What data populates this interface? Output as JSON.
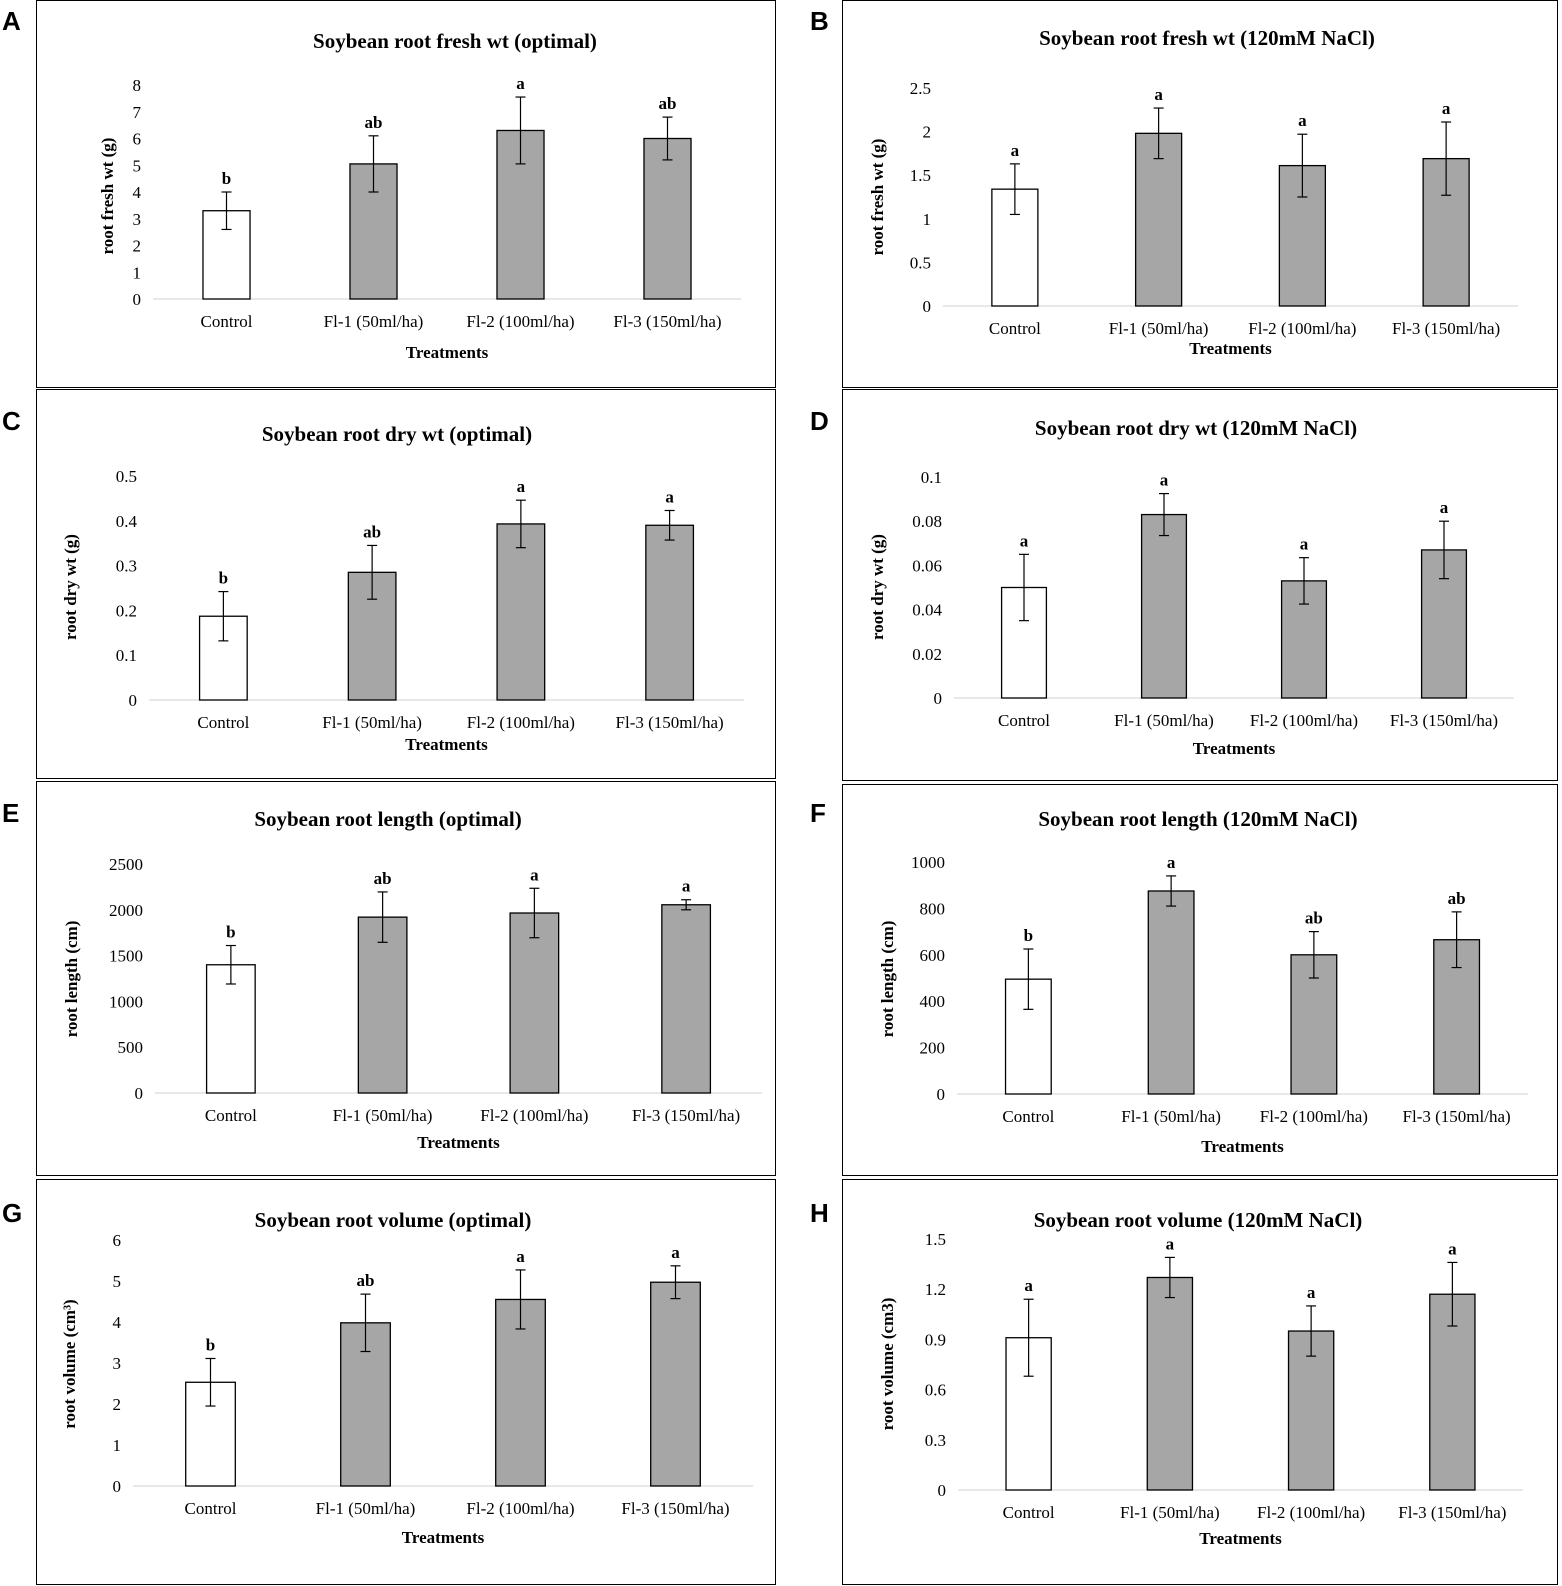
{
  "chart_data": [
    {
      "id": "A",
      "type": "bar",
      "title": "Soybean root fresh wt (optimal)",
      "xlabel": "Treatments",
      "ylabel": "root fresh wt (g)",
      "ylim": [
        0,
        8
      ],
      "yticks": [
        "0",
        "1",
        "2",
        "3",
        "4",
        "5",
        "6",
        "7",
        "8"
      ],
      "categories": [
        "Control",
        "Fl-1 (50ml/ha)",
        "Fl-2 (100ml/ha)",
        "Fl-3 (150ml/ha)"
      ],
      "values": [
        3.3,
        5.05,
        6.3,
        6.0
      ],
      "errors": [
        0.7,
        1.05,
        1.25,
        0.8
      ],
      "significance": [
        "b",
        "ab",
        "a",
        "ab"
      ],
      "bar_colors": [
        "#ffffff",
        "#a6a6a6",
        "#a6a6a6",
        "#a6a6a6"
      ]
    },
    {
      "id": "B",
      "type": "bar",
      "title": "Soybean root fresh wt (120mM NaCl)",
      "xlabel": "Treatments",
      "ylabel": "root fresh wt (g)",
      "ylim": [
        0,
        2.5
      ],
      "yticks": [
        "0",
        "0.5",
        "1",
        "1.5",
        "2",
        "2.5"
      ],
      "categories": [
        "Control",
        "Fl-1 (50ml/ha)",
        "Fl-2 (100ml/ha)",
        "Fl-3 (150ml/ha)"
      ],
      "values": [
        1.34,
        1.98,
        1.61,
        1.69
      ],
      "errors": [
        0.29,
        0.29,
        0.36,
        0.42
      ],
      "significance": [
        "a",
        "a",
        "a",
        "a"
      ],
      "bar_colors": [
        "#ffffff",
        "#a6a6a6",
        "#a6a6a6",
        "#a6a6a6"
      ]
    },
    {
      "id": "C",
      "type": "bar",
      "title": "Soybean root dry wt (optimal)",
      "xlabel": "Treatments",
      "ylabel": "root dry wt (g)",
      "ylim": [
        0,
        0.5
      ],
      "yticks": [
        "0",
        "0.1",
        "0.2",
        "0.3",
        "0.4",
        "0.5"
      ],
      "categories": [
        "Control",
        "Fl-1 (50ml/ha)",
        "Fl-2 (100ml/ha)",
        "Fl-3 (150ml/ha)"
      ],
      "values": [
        0.187,
        0.285,
        0.393,
        0.39
      ],
      "errors": [
        0.055,
        0.06,
        0.053,
        0.033
      ],
      "significance": [
        "b",
        "ab",
        "a",
        "a"
      ],
      "bar_colors": [
        "#ffffff",
        "#a6a6a6",
        "#a6a6a6",
        "#a6a6a6"
      ]
    },
    {
      "id": "D",
      "type": "bar",
      "title": "Soybean root dry wt (120mM NaCl)",
      "xlabel": "Treatments",
      "ylabel": "root dry  wt (g)",
      "ylim": [
        0,
        0.1
      ],
      "yticks": [
        "0",
        "0.02",
        "0.04",
        "0.06",
        "0.08",
        "0.1"
      ],
      "categories": [
        "Control",
        "Fl-1 (50ml/ha)",
        "Fl-2 (100ml/ha)",
        "Fl-3 (150ml/ha)"
      ],
      "values": [
        0.05,
        0.083,
        0.053,
        0.067
      ],
      "errors": [
        0.015,
        0.0095,
        0.0105,
        0.013
      ],
      "significance": [
        "a",
        "a",
        "a",
        "a"
      ],
      "bar_colors": [
        "#ffffff",
        "#a6a6a6",
        "#a6a6a6",
        "#a6a6a6"
      ]
    },
    {
      "id": "E",
      "type": "bar",
      "title": "Soybean root length (optimal)",
      "xlabel": "Treatments",
      "ylabel": "root length (cm)",
      "ylim": [
        0,
        2500
      ],
      "yticks": [
        "0",
        "500",
        "1000",
        "1500",
        "2000",
        "2500"
      ],
      "categories": [
        "Control",
        "Fl-1 (50ml/ha)",
        "Fl-2 (100ml/ha)",
        "Fl-3 (150ml/ha)"
      ],
      "values": [
        1400,
        1920,
        1965,
        2055
      ],
      "errors": [
        210,
        275,
        270,
        55
      ],
      "significance": [
        "b",
        "ab",
        "a",
        "a"
      ],
      "bar_colors": [
        "#ffffff",
        "#a6a6a6",
        "#a6a6a6",
        "#a6a6a6"
      ]
    },
    {
      "id": "F",
      "type": "bar",
      "title": "Soybean root length (120mM NaCl)",
      "xlabel": "Treatments",
      "ylabel": "root length (cm)",
      "ylim": [
        0,
        1000
      ],
      "yticks": [
        "0",
        "200",
        "400",
        "600",
        "800",
        "1000"
      ],
      "categories": [
        "Control",
        "Fl-1 (50ml/ha)",
        "Fl-2 (100ml/ha)",
        "Fl-3 (150ml/ha)"
      ],
      "values": [
        495,
        875,
        600,
        665
      ],
      "errors": [
        130,
        65,
        100,
        120
      ],
      "significance": [
        "b",
        "a",
        "ab",
        "ab"
      ],
      "bar_colors": [
        "#ffffff",
        "#a6a6a6",
        "#a6a6a6",
        "#a6a6a6"
      ]
    },
    {
      "id": "G",
      "type": "bar",
      "title": "Soybean root volume (optimal)",
      "xlabel": "Treatments",
      "ylabel": "root volume (cm³)",
      "ylim": [
        0,
        6
      ],
      "yticks": [
        "0",
        "1",
        "2",
        "3",
        "4",
        "5",
        "6"
      ],
      "categories": [
        "Control",
        "Fl-1 (50ml/ha)",
        "Fl-2 (100ml/ha)",
        "Fl-3 (150ml/ha)"
      ],
      "values": [
        2.53,
        3.98,
        4.55,
        4.97
      ],
      "errors": [
        0.58,
        0.7,
        0.72,
        0.4
      ],
      "significance": [
        "b",
        "ab",
        "a",
        "a"
      ],
      "bar_colors": [
        "#ffffff",
        "#a6a6a6",
        "#a6a6a6",
        "#a6a6a6"
      ]
    },
    {
      "id": "H",
      "type": "bar",
      "title": "Soybean root volume (120mM NaCl)",
      "xlabel": "Treatments",
      "ylabel": "root volume  (cm3)",
      "ylim": [
        0,
        1.5
      ],
      "yticks": [
        "0",
        "0.3",
        "0.6",
        "0.9",
        "1.2",
        "1.5"
      ],
      "categories": [
        "Control",
        "Fl-1 (50ml/ha)",
        "Fl-2 (100ml/ha)",
        "Fl-3 (150ml/ha)"
      ],
      "values": [
        0.91,
        1.27,
        0.95,
        1.17
      ],
      "errors": [
        0.23,
        0.12,
        0.15,
        0.19
      ],
      "significance": [
        "a",
        "a",
        "a",
        "a"
      ],
      "bar_colors": [
        "#ffffff",
        "#a6a6a6",
        "#a6a6a6",
        "#a6a6a6"
      ]
    }
  ]
}
